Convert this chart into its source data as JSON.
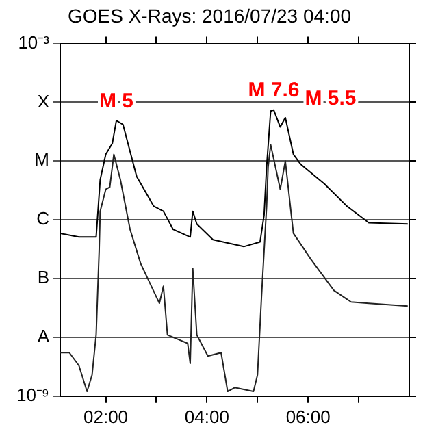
{
  "chart_data": {
    "type": "line",
    "title": "GOES X-Rays: 2016/07/23 04:00",
    "xlim": [
      1.1,
      8.0
    ],
    "xticks": [
      {
        "value": 2,
        "label": "02:00"
      },
      {
        "value": 3,
        "label": null
      },
      {
        "value": 4,
        "label": "04:00"
      },
      {
        "value": 5,
        "label": null
      },
      {
        "value": 6,
        "label": "06:00"
      },
      {
        "value": 7,
        "label": null
      }
    ],
    "ylim": [
      1e-09,
      0.001
    ],
    "yticks": [
      {
        "value": 1e-09,
        "label": "10⁻⁹"
      },
      {
        "value": 1e-08,
        "label": "A"
      },
      {
        "value": 1e-07,
        "label": "B"
      },
      {
        "value": 1e-06,
        "label": "C"
      },
      {
        "value": 1e-05,
        "label": "M"
      },
      {
        "value": 0.0001,
        "label": "X"
      },
      {
        "value": 0.001,
        "label": "10⁻³"
      }
    ],
    "log": "y",
    "grid": "y",
    "legend": false,
    "marker": "none",
    "line_style": "solid",
    "series": [
      {
        "color": "#000000",
        "x": [
          1.1,
          1.47,
          1.81,
          1.89,
          2.0,
          2.13,
          2.21,
          2.34,
          2.61,
          2.95,
          3.14,
          3.33,
          3.67,
          3.72,
          3.8,
          4.12,
          4.73,
          5.05,
          5.13,
          5.18,
          5.26,
          5.32,
          5.45,
          5.55,
          5.71,
          5.85,
          6.32,
          6.77,
          7.2,
          7.97
        ],
        "values": [
          5.9e-07,
          5.1e-07,
          5.1e-07,
          4.8e-06,
          1.3e-05,
          2e-05,
          4.9e-05,
          4.2e-05,
          5.5e-06,
          1.7e-06,
          1.4e-06,
          6.9e-07,
          5.1e-07,
          1.4e-06,
          8.5e-07,
          4.6e-07,
          3.5e-07,
          4.2e-07,
          1.2e-06,
          7.9e-06,
          7.1e-05,
          7.4e-05,
          3.8e-05,
          5.5e-05,
          1.3e-05,
          8.9e-06,
          4.1e-06,
          1.7e-06,
          8.9e-07,
          8.5e-07
        ]
      },
      {
        "color": "#222222",
        "x": [
          1.1,
          1.28,
          1.47,
          1.63,
          1.73,
          1.81,
          1.87,
          1.89,
          2.0,
          2.08,
          2.16,
          2.29,
          2.48,
          2.69,
          3.06,
          3.14,
          3.22,
          3.62,
          3.67,
          3.72,
          3.8,
          4.02,
          4.28,
          4.41,
          4.55,
          4.92,
          5.0,
          5.08,
          5.18,
          5.21,
          5.26,
          5.45,
          5.55,
          5.66,
          5.71,
          6.06,
          6.51,
          6.85,
          7.2,
          7.97
        ],
        "values": [
          5.5e-09,
          5.5e-09,
          3.3e-09,
          1.2e-09,
          2.3e-09,
          1.1e-08,
          3e-07,
          1.4e-06,
          3.3e-06,
          3.6e-06,
          1.3e-05,
          4.8e-06,
          6.9e-07,
          1.8e-07,
          3.8e-08,
          7.4e-08,
          1.1e-08,
          7.9e-09,
          3.6e-09,
          1.5e-07,
          1.1e-08,
          4.8e-09,
          5.5e-09,
          1.2e-09,
          1.4e-09,
          1.2e-09,
          2.3e-09,
          5.1e-08,
          1.7e-06,
          7.9e-06,
          1.9e-05,
          3.3e-06,
          1e-05,
          1.4e-06,
          5.9e-07,
          2.1e-07,
          6.3e-08,
          4e-08,
          3.8e-08,
          3.4e-08
        ]
      }
    ],
    "annotations": [
      {
        "text": "M 5",
        "x": 2.21,
        "y": 5e-05
      },
      {
        "text": "M 7.6",
        "x": 5.32,
        "y": 7.6e-05
      },
      {
        "text": "M 5.5",
        "x": 5.55,
        "y": 5.5e-05
      }
    ]
  }
}
